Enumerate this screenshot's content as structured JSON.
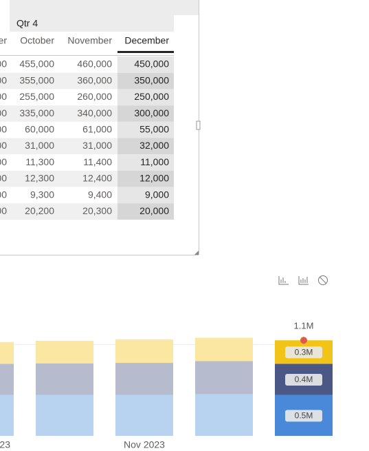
{
  "table": {
    "group_header": "Qtr 4",
    "columns": [
      "er",
      "October",
      "November",
      "December"
    ],
    "rows": [
      [
        "00",
        "455,000",
        "460,000",
        "450,000"
      ],
      [
        "00",
        "355,000",
        "360,000",
        "350,000"
      ],
      [
        "00",
        "255,000",
        "260,000",
        "250,000"
      ],
      [
        "00",
        "335,000",
        "340,000",
        "300,000"
      ],
      [
        "00",
        "60,000",
        "61,000",
        "55,000"
      ],
      [
        "00",
        "31,000",
        "31,000",
        "32,000"
      ],
      [
        "00",
        "11,300",
        "11,400",
        "11,000"
      ],
      [
        "00",
        "12,300",
        "12,400",
        "12,000"
      ],
      [
        "00",
        "9,300",
        "9,400",
        "9,000"
      ],
      [
        "00",
        "20,200",
        "20,300",
        "20,000"
      ]
    ]
  },
  "chart_data": {
    "type": "stacked_bar",
    "categories": [
      "23",
      null,
      "Nov 2023",
      null,
      null
    ],
    "ylim": [
      0,
      1.3
    ],
    "highlight": 4,
    "total_label": "1.1M",
    "series": [
      {
        "color": "#b8d3f0",
        "highlight_color": "#4a88d9",
        "values": [
          0.47,
          0.47,
          0.47,
          0.48,
          0.47
        ],
        "value_labels": [
          null,
          null,
          null,
          null,
          "0.5M"
        ]
      },
      {
        "color": "#b6bccd",
        "highlight_color": "#4b5784",
        "values": [
          0.36,
          0.365,
          0.37,
          0.38,
          0.36
        ],
        "value_labels": [
          null,
          null,
          null,
          null,
          "0.4M"
        ]
      },
      {
        "color": "#fbe7a1",
        "highlight_color": "#f2c417",
        "values": [
          0.25,
          0.26,
          0.27,
          0.27,
          0.27
        ],
        "value_labels": [
          null,
          null,
          null,
          null,
          "0.3M"
        ]
      }
    ]
  }
}
